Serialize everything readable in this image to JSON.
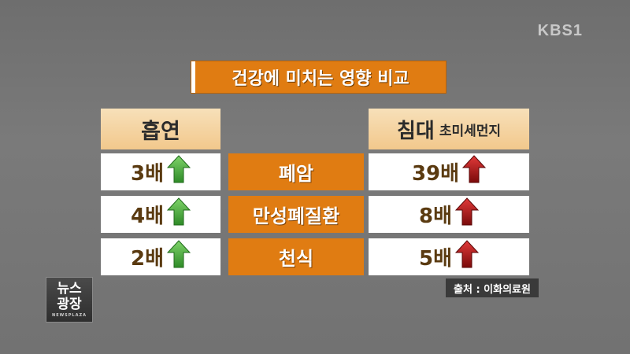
{
  "broadcaster": "KBS1",
  "title": "건강에 미치는 영향 비교",
  "left_header": "흡연",
  "right_header": {
    "main": "침대",
    "sub": "초미세먼지"
  },
  "rows": [
    {
      "left": "3배",
      "disease": "폐암",
      "right": "39배"
    },
    {
      "left": "4배",
      "disease": "만성폐질환",
      "right": "8배"
    },
    {
      "left": "2배",
      "disease": "천식",
      "right": "5배"
    }
  ],
  "source": "출처 : 이화의료원",
  "program_logo": {
    "line1": "뉴스",
    "line2": "광장",
    "sub": "NEWSPLAZA"
  },
  "colors": {
    "accent": "#e07c12",
    "up_green": "#3fa535",
    "up_red": "#b01515"
  },
  "icons": {
    "left_arrow": "up-arrow-green-icon",
    "right_arrow": "up-arrow-red-icon"
  }
}
